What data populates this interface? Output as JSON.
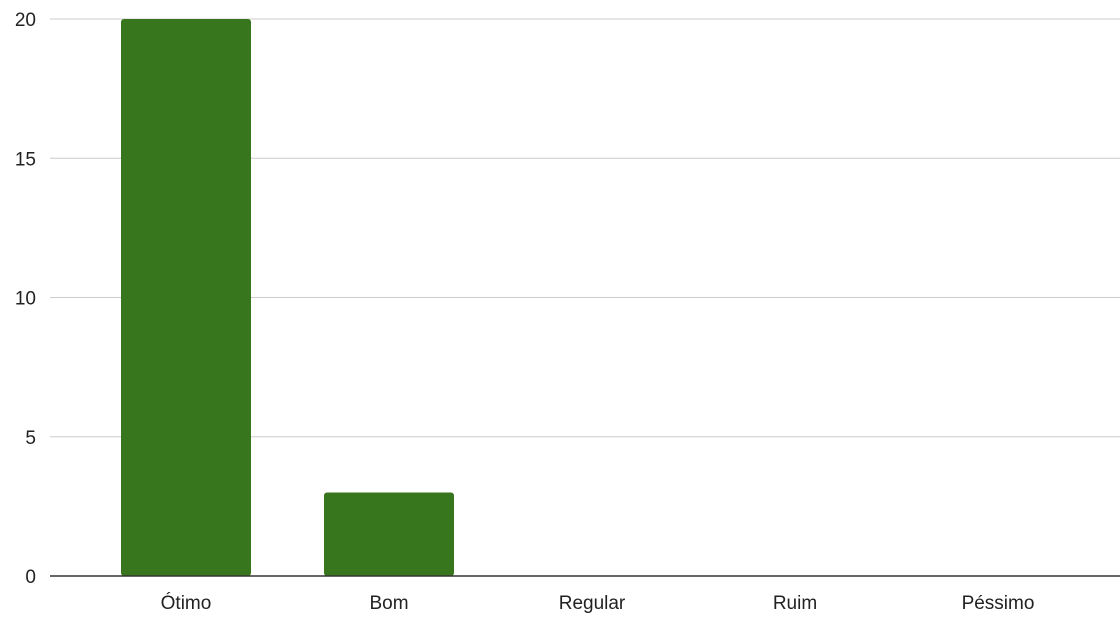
{
  "chart_data": {
    "type": "bar",
    "categories": [
      "Ótimo",
      "Bom",
      "Regular",
      "Ruim",
      "Péssimo"
    ],
    "values": [
      20,
      3,
      0,
      0,
      0
    ],
    "ylim": [
      0,
      20
    ],
    "y_ticks": [
      0,
      5,
      10,
      15,
      20
    ],
    "grid": true,
    "legend": "none",
    "colors": {
      "bar": "#38761d",
      "grid": "#cccccc",
      "axis": "#333333"
    }
  }
}
